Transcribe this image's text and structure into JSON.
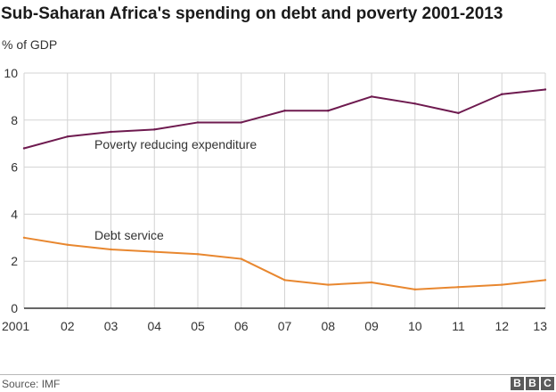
{
  "colors": {
    "poverty": "#6e1a4f",
    "debt": "#e8872f",
    "grid": "#d3d3d3",
    "axis": "#333333"
  },
  "chart_data": {
    "type": "line",
    "title": "Sub-Saharan Africa's spending on debt and poverty 2001-2013",
    "ylabel": "% of GDP",
    "xlabel": "",
    "x": [
      2001,
      2002,
      2003,
      2004,
      2005,
      2006,
      2007,
      2008,
      2009,
      2010,
      2011,
      2012,
      2013
    ],
    "x_tick_labels": [
      "2001",
      "02",
      "03",
      "04",
      "05",
      "06",
      "07",
      "08",
      "09",
      "10",
      "11",
      "12",
      "13"
    ],
    "ylim": [
      0,
      10
    ],
    "y_ticks": [
      0,
      2,
      4,
      6,
      8,
      10
    ],
    "grid": "horizontal and vertical",
    "legend": "inline labels",
    "series": [
      {
        "name": "Poverty reducing expenditure",
        "color": "#6e1a4f",
        "values": [
          6.8,
          7.3,
          7.5,
          7.6,
          7.9,
          7.9,
          8.4,
          8.4,
          9.0,
          8.7,
          8.3,
          9.1,
          9.3
        ]
      },
      {
        "name": "Debt service",
        "color": "#e8872f",
        "values": [
          3.0,
          2.7,
          2.5,
          2.4,
          2.3,
          2.1,
          1.2,
          1.0,
          1.1,
          0.8,
          0.9,
          1.0,
          1.2
        ]
      }
    ]
  },
  "footer": {
    "source": "Source: IMF",
    "logo_letters": [
      "B",
      "B",
      "C"
    ]
  }
}
